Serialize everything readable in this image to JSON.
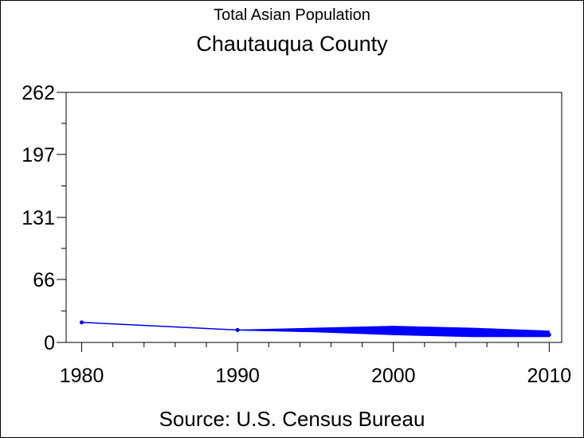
{
  "chart_data": {
    "type": "line",
    "subtitle": "Total Asian Population",
    "title": "Chautauqua County",
    "source": "Source: U.S. Census Bureau",
    "xlabel": "",
    "ylabel": "",
    "x_ticks": [
      "1980",
      "1990",
      "2000",
      "2010"
    ],
    "y_ticks": [
      "0",
      "66",
      "131",
      "197",
      "262"
    ],
    "xlim": [
      1979,
      2010.8
    ],
    "ylim": [
      0,
      262
    ],
    "grid": false,
    "series": [
      {
        "color": "#0000ff",
        "x": [
          1980,
          1990,
          2000,
          2010
        ],
        "y": [
          21,
          13,
          10,
          8
        ]
      }
    ],
    "band": {
      "color": "#0000ff",
      "x": [
        1990,
        1995,
        2000,
        2005,
        2010
      ],
      "upper": [
        13,
        15,
        17,
        15,
        12
      ],
      "lower": [
        13,
        11,
        8,
        6,
        6
      ]
    }
  }
}
